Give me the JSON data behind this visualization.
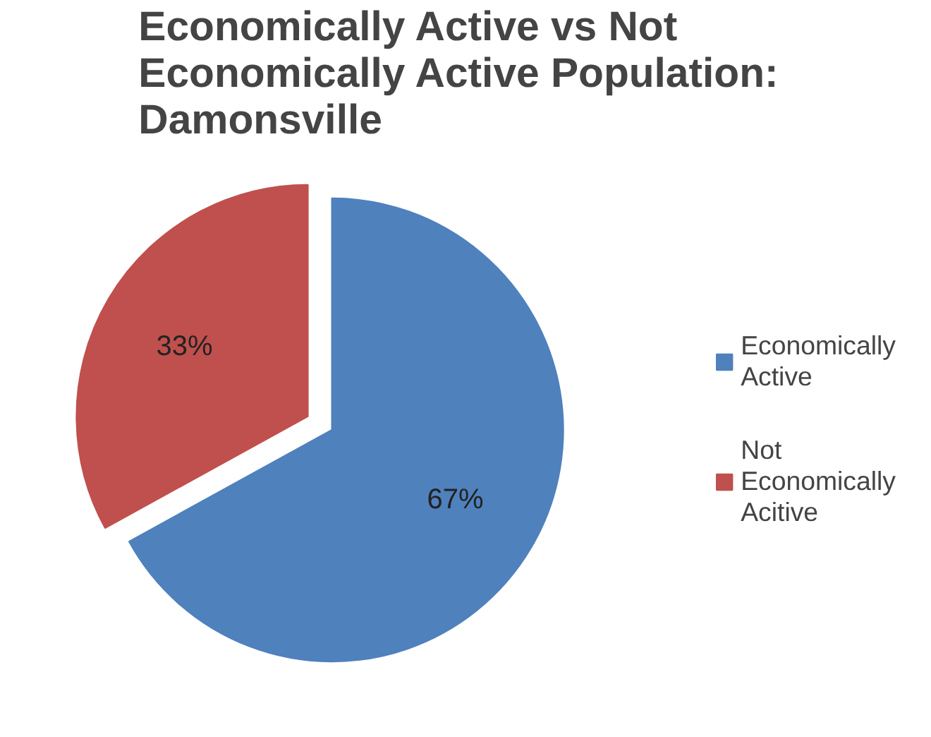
{
  "chart_data": {
    "type": "pie",
    "title": "Economically Active vs Not Economically Active Population: Damonsville",
    "categories": [
      "Economically Active",
      "Not Economically Acitive"
    ],
    "values": [
      67,
      33
    ],
    "colors": [
      "#4f81bd",
      "#c0504d"
    ],
    "value_labels": [
      "67%",
      "33%"
    ],
    "legend": "right"
  }
}
